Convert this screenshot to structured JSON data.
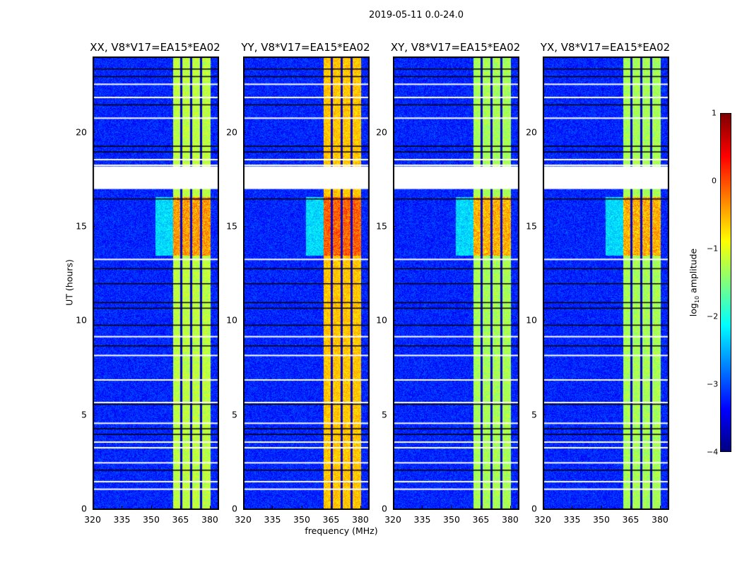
{
  "chart_data": {
    "type": "heatmap",
    "title": "2019-05-11 0.0-24.0",
    "xlabel": "frequency (MHz)",
    "ylabel": "UT (hours)",
    "xlim": [
      320,
      384
    ],
    "ylim": [
      0,
      24
    ],
    "xticks": [
      "320",
      "335",
      "350",
      "365",
      "380"
    ],
    "yticks": [
      "0",
      "5",
      "10",
      "15",
      "20"
    ],
    "panels": [
      {
        "title": "XX, V8*V17=EA15*EA02",
        "band_level": -1.2,
        "peak_level": 0.0
      },
      {
        "title": "YY, V8*V17=EA15*EA02",
        "band_level": -0.6,
        "peak_level": 0.3
      },
      {
        "title": "XY, V8*V17=EA15*EA02",
        "band_level": -1.3,
        "peak_level": -0.1
      },
      {
        "title": "YX, V8*V17=EA15*EA02",
        "band_level": -1.3,
        "peak_level": -0.1
      }
    ],
    "active_band_mhz": [
      360.5,
      380
    ],
    "channel_gaps_mhz": [
      365,
      370,
      375
    ],
    "background_level": -3.2,
    "bright_interval_hours": [
      13.5,
      16.6
    ],
    "flagged_interval_hours": [
      17.0,
      18.2
    ],
    "flagged_rows_hours": [
      22.6,
      21.9,
      20.8,
      18.6,
      18.3,
      13.3,
      9.2,
      8.2,
      6.9,
      5.7,
      4.6,
      3.6,
      3.3,
      2.5,
      1.5,
      1.1
    ],
    "dark_rows_hours": [
      23.4,
      23.0,
      21.5,
      19.3,
      19.0,
      16.5,
      12.8,
      12.0,
      11.0,
      10.7,
      9.8,
      8.7,
      5.6,
      4.3,
      4.0,
      2.1
    ],
    "colorbar": {
      "label": "log10 amplitude",
      "range": [
        -4,
        1
      ],
      "ticks": [
        "1",
        "0",
        "−1",
        "−2",
        "−3",
        "−4"
      ],
      "colormap": "jet"
    }
  }
}
